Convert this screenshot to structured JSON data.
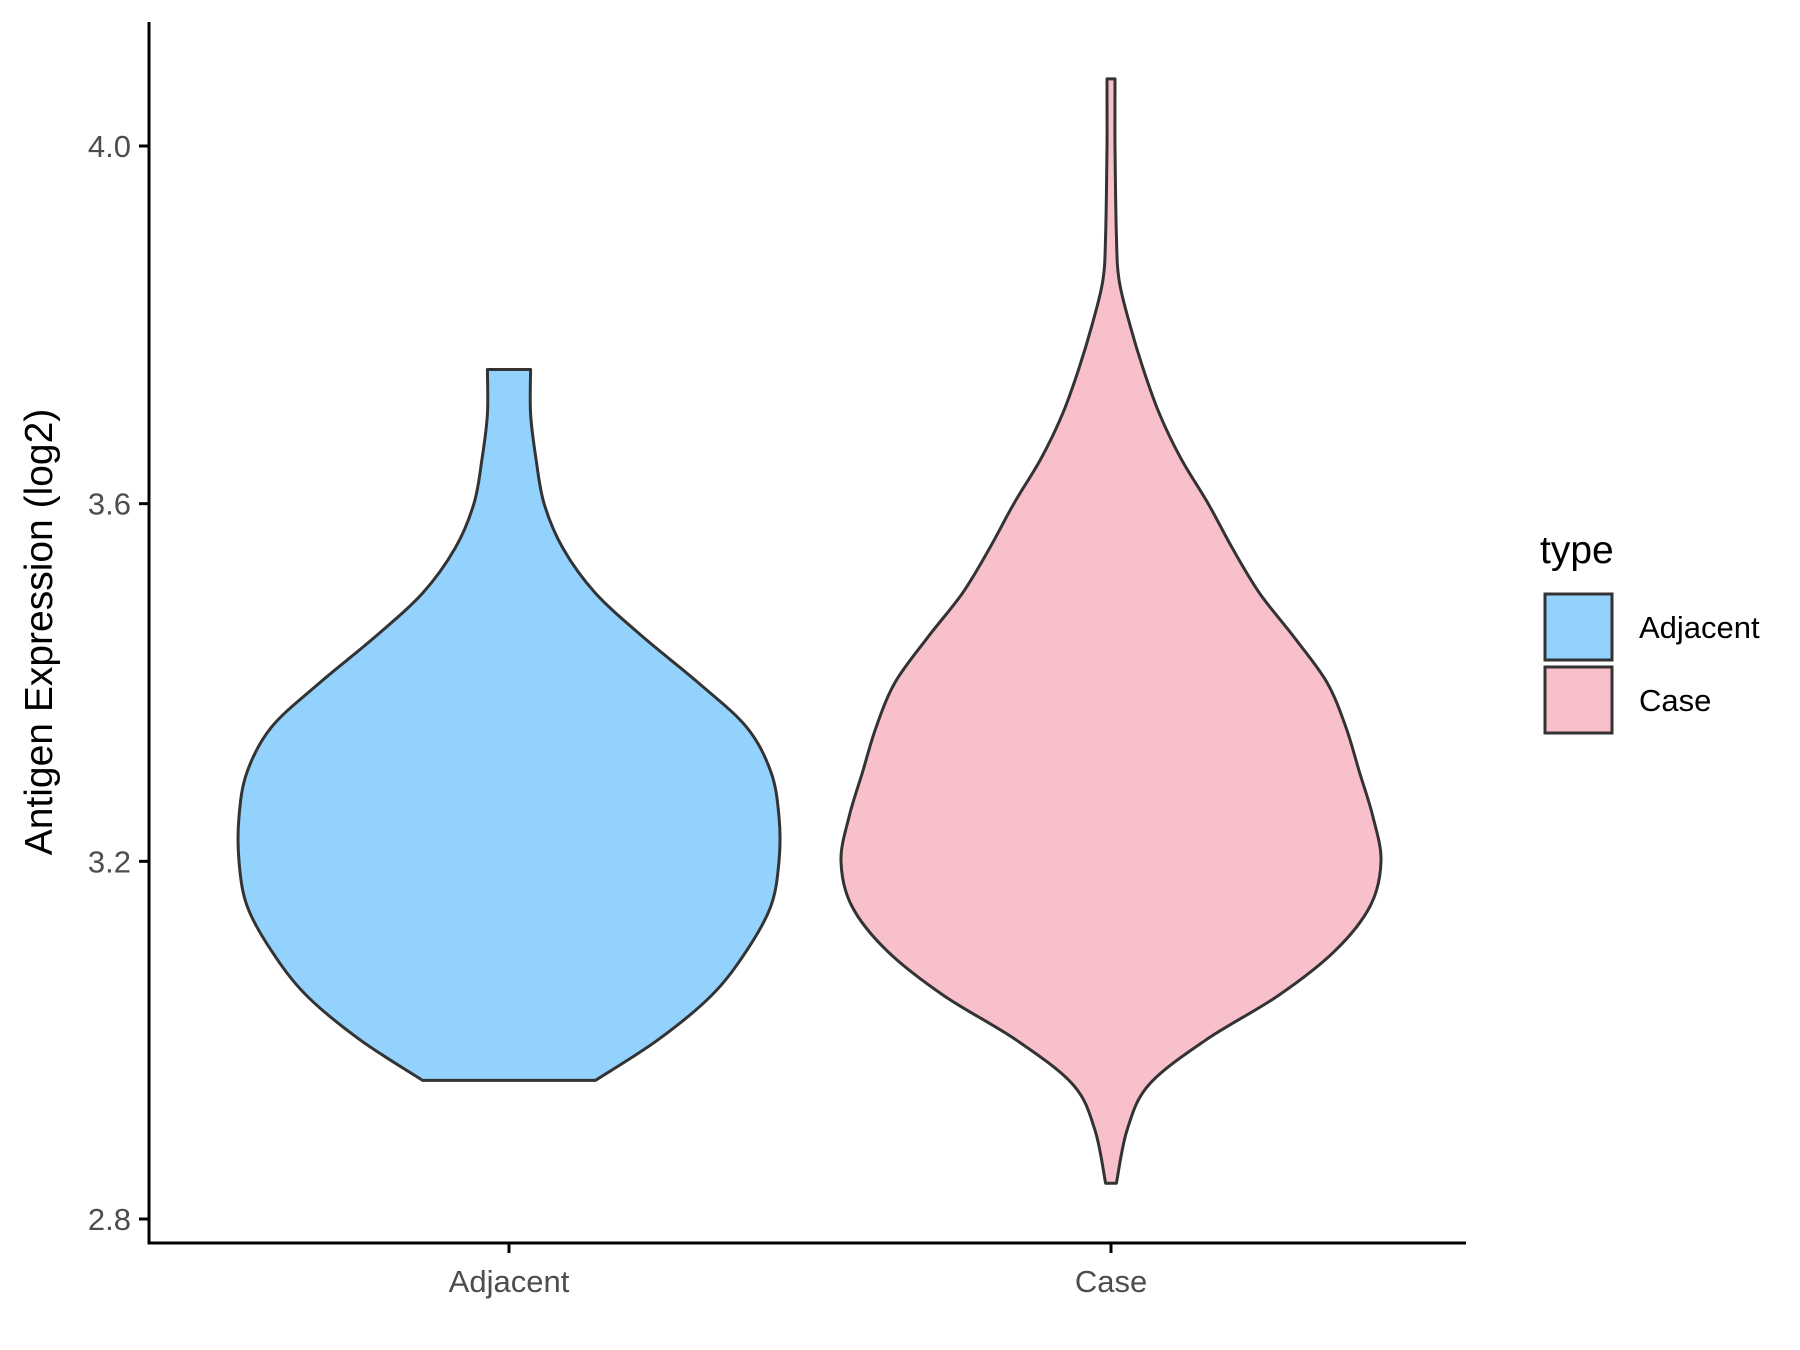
{
  "chart_data": {
    "type": "violin",
    "title": "",
    "xlabel": "",
    "ylabel": "Antigen Expression (log2)",
    "categories": [
      "Adjacent",
      "Case"
    ],
    "ylim": [
      2.78,
      4.14
    ],
    "yticks": [
      2.8,
      3.2,
      3.6,
      4.0
    ],
    "ytick_labels": [
      "2.8",
      "3.2",
      "3.6",
      "4.0"
    ],
    "grid": false,
    "legend": {
      "title": "type",
      "position": "right",
      "entries": [
        "Adjacent",
        "Case"
      ]
    },
    "colors": {
      "Adjacent": "#92d2fd",
      "Case": "#f8c0cb",
      "outline": "#333333"
    },
    "series": [
      {
        "name": "Adjacent",
        "min": 2.955,
        "max": 3.75,
        "density_profile": [
          [
            2.955,
            0.32
          ],
          [
            3.0,
            0.55
          ],
          [
            3.05,
            0.75
          ],
          [
            3.1,
            0.88
          ],
          [
            3.15,
            0.97
          ],
          [
            3.2,
            1.0
          ],
          [
            3.25,
            1.0
          ],
          [
            3.3,
            0.97
          ],
          [
            3.35,
            0.88
          ],
          [
            3.4,
            0.7
          ],
          [
            3.45,
            0.5
          ],
          [
            3.5,
            0.32
          ],
          [
            3.55,
            0.2
          ],
          [
            3.6,
            0.13
          ],
          [
            3.65,
            0.1
          ],
          [
            3.7,
            0.08
          ],
          [
            3.75,
            0.08
          ]
        ]
      },
      {
        "name": "Case",
        "min": 2.84,
        "max": 4.075,
        "density_profile": [
          [
            2.84,
            0.02
          ],
          [
            2.9,
            0.06
          ],
          [
            2.95,
            0.14
          ],
          [
            3.0,
            0.35
          ],
          [
            3.05,
            0.62
          ],
          [
            3.1,
            0.83
          ],
          [
            3.15,
            0.96
          ],
          [
            3.2,
            1.0
          ],
          [
            3.25,
            0.97
          ],
          [
            3.3,
            0.92
          ],
          [
            3.35,
            0.87
          ],
          [
            3.4,
            0.8
          ],
          [
            3.45,
            0.68
          ],
          [
            3.5,
            0.55
          ],
          [
            3.55,
            0.45
          ],
          [
            3.6,
            0.36
          ],
          [
            3.65,
            0.26
          ],
          [
            3.7,
            0.18
          ],
          [
            3.75,
            0.12
          ],
          [
            3.8,
            0.07
          ],
          [
            3.85,
            0.03
          ],
          [
            3.9,
            0.02
          ],
          [
            4.0,
            0.015
          ],
          [
            4.075,
            0.015
          ]
        ]
      }
    ]
  }
}
